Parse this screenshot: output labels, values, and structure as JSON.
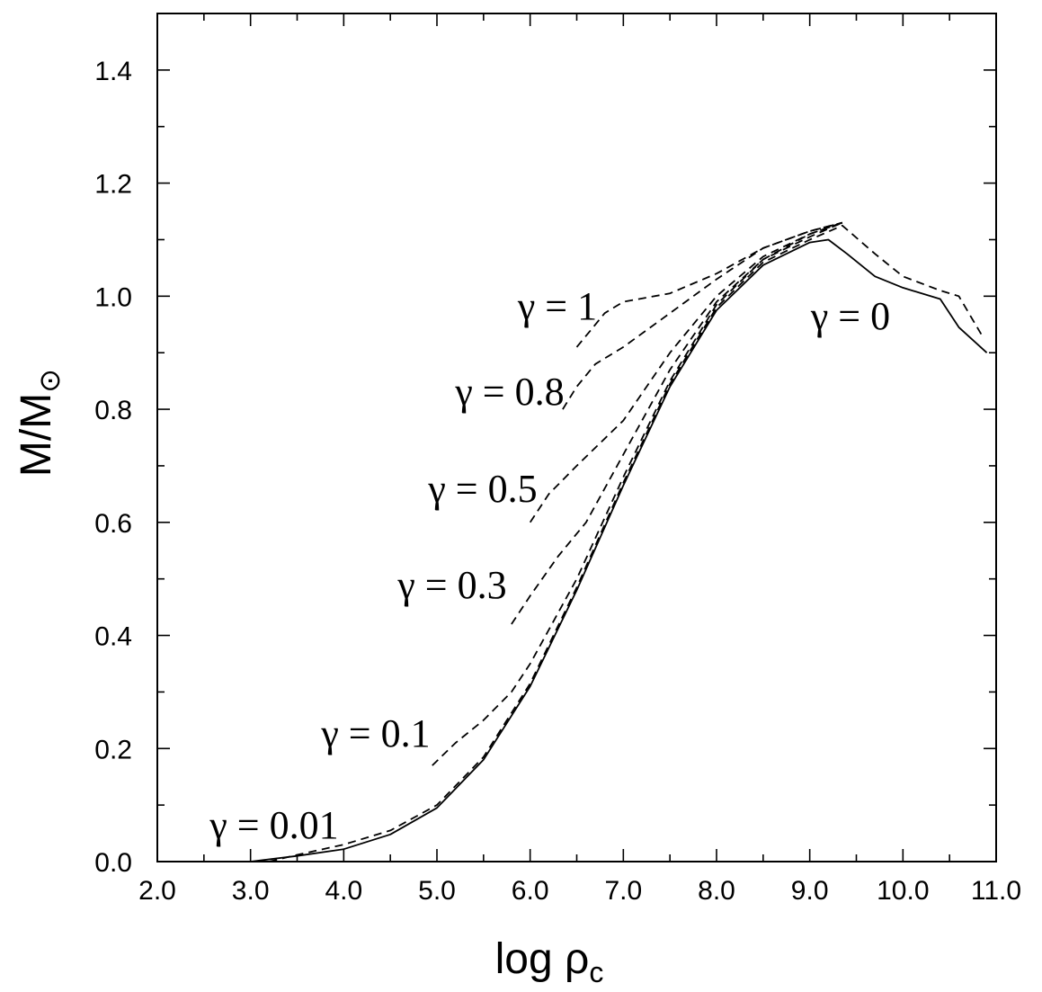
{
  "chart_data": {
    "type": "line",
    "xlabel": "log ρc",
    "xlabel_base": "log ρ",
    "xlabel_sub": "c",
    "ylabel": "M/M⊙",
    "ylabel_base": "M/M",
    "ylabel_sub": "⊙",
    "xlim": [
      2.0,
      11.0
    ],
    "ylim": [
      0.0,
      1.5
    ],
    "x_ticks": [
      2.0,
      3.0,
      4.0,
      5.0,
      6.0,
      7.0,
      8.0,
      9.0,
      10.0,
      11.0
    ],
    "x_tick_labels": [
      "2.0",
      "3.0",
      "4.0",
      "5.0",
      "6.0",
      "7.0",
      "8.0",
      "9.0",
      "10.0",
      "11.0"
    ],
    "y_ticks": [
      0.0,
      0.2,
      0.4,
      0.6,
      0.8,
      1.0,
      1.2,
      1.4
    ],
    "y_tick_labels": [
      "0.0",
      "0.2",
      "0.4",
      "0.6",
      "0.8",
      "1.0",
      "1.2",
      "1.4"
    ],
    "grid": false,
    "series": [
      {
        "name": "γ = 0",
        "label": "γ = 0",
        "style": "solid",
        "x": [
          3.0,
          3.5,
          4.0,
          4.5,
          5.0,
          5.5,
          6.0,
          6.5,
          7.0,
          7.5,
          8.0,
          8.5,
          9.0,
          9.2,
          9.4,
          9.7,
          10.0,
          10.4,
          10.6,
          10.9
        ],
        "y": [
          0.0,
          0.01,
          0.022,
          0.048,
          0.095,
          0.18,
          0.31,
          0.48,
          0.665,
          0.84,
          0.975,
          1.055,
          1.095,
          1.1,
          1.075,
          1.035,
          1.015,
          0.995,
          0.945,
          0.9
        ]
      },
      {
        "name": "γ = 0.01",
        "label": "γ = 0.01",
        "style": "dashed",
        "x": [
          3.2,
          3.5,
          4.0,
          4.5,
          5.0,
          5.5,
          6.0,
          6.5,
          7.0,
          7.5,
          8.0,
          8.5,
          9.0,
          9.35,
          9.7,
          10.0,
          10.4,
          10.6,
          10.85
        ],
        "y": [
          0.0,
          0.012,
          0.03,
          0.055,
          0.1,
          0.185,
          0.315,
          0.485,
          0.67,
          0.845,
          0.98,
          1.06,
          1.1,
          1.125,
          1.075,
          1.035,
          1.01,
          1.0,
          0.93
        ]
      },
      {
        "name": "γ = 0.1",
        "label": "γ = 0.1",
        "style": "dashed",
        "x": [
          4.95,
          5.2,
          5.5,
          5.8,
          6.0,
          6.5,
          7.0,
          7.5,
          8.0,
          8.5,
          9.0,
          9.35
        ],
        "y": [
          0.17,
          0.21,
          0.25,
          0.3,
          0.35,
          0.5,
          0.68,
          0.85,
          0.985,
          1.065,
          1.105,
          1.13
        ]
      },
      {
        "name": "γ = 0.3",
        "label": "γ = 0.3",
        "style": "dashed",
        "x": [
          5.8,
          6.0,
          6.3,
          6.6,
          7.0,
          7.5,
          8.0,
          8.5,
          9.0,
          9.35
        ],
        "y": [
          0.42,
          0.47,
          0.54,
          0.6,
          0.72,
          0.87,
          0.99,
          1.065,
          1.11,
          1.13
        ]
      },
      {
        "name": "γ = 0.5",
        "label": "γ = 0.5",
        "style": "dashed",
        "x": [
          6.0,
          6.2,
          6.5,
          7.0,
          7.5,
          8.0,
          8.5,
          9.0,
          9.35
        ],
        "y": [
          0.6,
          0.65,
          0.7,
          0.78,
          0.9,
          1.0,
          1.07,
          1.11,
          1.13
        ]
      },
      {
        "name": "γ = 0.8",
        "label": "γ = 0.8",
        "style": "dashed",
        "x": [
          6.35,
          6.5,
          6.7,
          7.0,
          7.5,
          8.0,
          8.5,
          9.0,
          9.35
        ],
        "y": [
          0.8,
          0.84,
          0.88,
          0.91,
          0.97,
          1.03,
          1.085,
          1.115,
          1.13
        ]
      },
      {
        "name": "γ = 1",
        "label": "γ = 1",
        "style": "dashed",
        "x": [
          6.5,
          6.65,
          6.8,
          7.0,
          7.5,
          8.0,
          8.5,
          9.0,
          9.35
        ],
        "y": [
          0.91,
          0.94,
          0.97,
          0.99,
          1.005,
          1.04,
          1.085,
          1.115,
          1.13
        ]
      }
    ]
  }
}
